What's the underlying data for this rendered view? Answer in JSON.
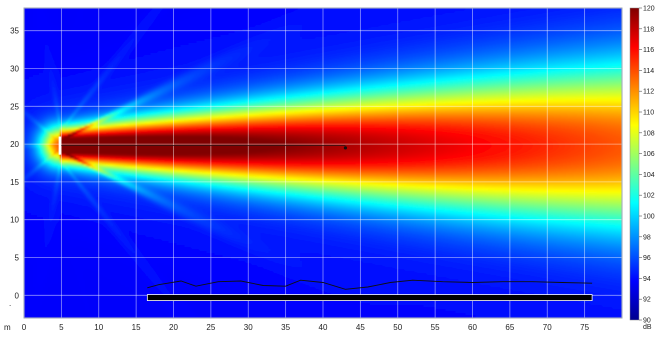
{
  "chart_data": {
    "type": "heatmap",
    "title": "",
    "xlabel": "",
    "ylabel": "",
    "x_unit_label": "m",
    "xlim": [
      0,
      80
    ],
    "ylim": [
      -3,
      38
    ],
    "x_ticks": [
      0,
      5,
      10,
      15,
      20,
      25,
      30,
      35,
      40,
      45,
      50,
      55,
      60,
      65,
      70,
      75
    ],
    "y_ticks": [
      0,
      5,
      10,
      15,
      20,
      25,
      30,
      35
    ],
    "grid": true,
    "colorbar": {
      "unit": "dB",
      "min": 90,
      "max": 120,
      "ticks": [
        90,
        92,
        94,
        96,
        98,
        100,
        102,
        104,
        106,
        108,
        110,
        112,
        114,
        116,
        118,
        120
      ]
    },
    "source": {
      "x": 4.8,
      "y": 19.8,
      "half_width": 1.2
    },
    "beam_axis": {
      "x_start": 5,
      "x_end": 43,
      "y": 19.8
    },
    "beam_end_marker": {
      "x": 43,
      "y": 19.5
    },
    "audience_area": {
      "x_start": 16.5,
      "x_end": 76,
      "y": -0.3
    },
    "terrain_profile": [
      [
        16.5,
        1.0
      ],
      [
        18,
        1.4
      ],
      [
        21,
        1.9
      ],
      [
        23,
        1.2
      ],
      [
        26,
        1.8
      ],
      [
        29,
        1.9
      ],
      [
        32,
        1.3
      ],
      [
        35,
        1.2
      ],
      [
        37,
        2.0
      ],
      [
        40,
        1.7
      ],
      [
        43,
        0.8
      ],
      [
        46,
        1.1
      ],
      [
        49,
        1.7
      ],
      [
        52,
        2.0
      ],
      [
        56,
        1.8
      ],
      [
        60,
        1.7
      ],
      [
        64,
        1.8
      ],
      [
        68,
        1.8
      ],
      [
        72,
        1.7
      ],
      [
        76,
        1.6
      ]
    ]
  }
}
